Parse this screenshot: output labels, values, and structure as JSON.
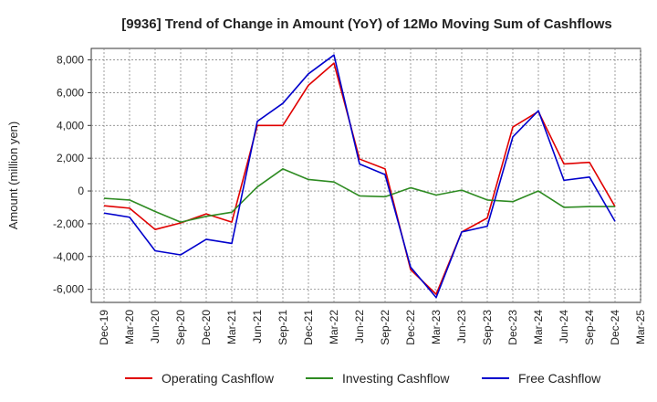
{
  "chart_data": {
    "type": "line",
    "title": "[9936]  Trend of Change in Amount (YoY) of 12Mo Moving Sum of Cashflows",
    "xlabel": "",
    "ylabel": "Amount (million yen)",
    "ylim": [
      -6800,
      8700
    ],
    "yticks": [
      -6000,
      -4000,
      -2000,
      0,
      2000,
      4000,
      6000,
      8000
    ],
    "ytick_labels": [
      "-6,000",
      "-4,000",
      "-2,000",
      "0",
      "2,000",
      "4,000",
      "6,000",
      "8,000"
    ],
    "grid": true,
    "legend_position": "bottom",
    "categories": [
      "Dec-19",
      "Mar-20",
      "Jun-20",
      "Sep-20",
      "Dec-20",
      "Mar-21",
      "Jun-21",
      "Sep-21",
      "Dec-21",
      "Mar-22",
      "Jun-22",
      "Sep-22",
      "Dec-22",
      "Mar-23",
      "Jun-23",
      "Sep-23",
      "Dec-23",
      "Mar-24",
      "Jun-24",
      "Sep-24",
      "Dec-24",
      "Mar-25"
    ],
    "series": [
      {
        "name": "Operating Cashflow",
        "color": "#e00000",
        "values": [
          -900,
          -1050,
          -2350,
          -1950,
          -1400,
          -1900,
          4000,
          4000,
          6450,
          7800,
          1950,
          1350,
          -4800,
          -6300,
          -2500,
          -1650,
          3900,
          4850,
          1650,
          1750,
          -950,
          null
        ]
      },
      {
        "name": "Investing Cashflow",
        "color": "#2e8b22",
        "values": [
          -450,
          -550,
          -1250,
          -1900,
          -1550,
          -1300,
          250,
          1350,
          700,
          550,
          -300,
          -350,
          200,
          -250,
          50,
          -550,
          -650,
          0,
          -1000,
          -950,
          -950,
          null
        ]
      },
      {
        "name": "Free Cashflow",
        "color": "#0000cc",
        "values": [
          -1350,
          -1600,
          -3650,
          -3900,
          -2950,
          -3200,
          4250,
          5350,
          7150,
          8300,
          1650,
          1000,
          -4650,
          -6500,
          -2500,
          -2150,
          3300,
          4900,
          650,
          850,
          -1850,
          null
        ]
      }
    ]
  }
}
